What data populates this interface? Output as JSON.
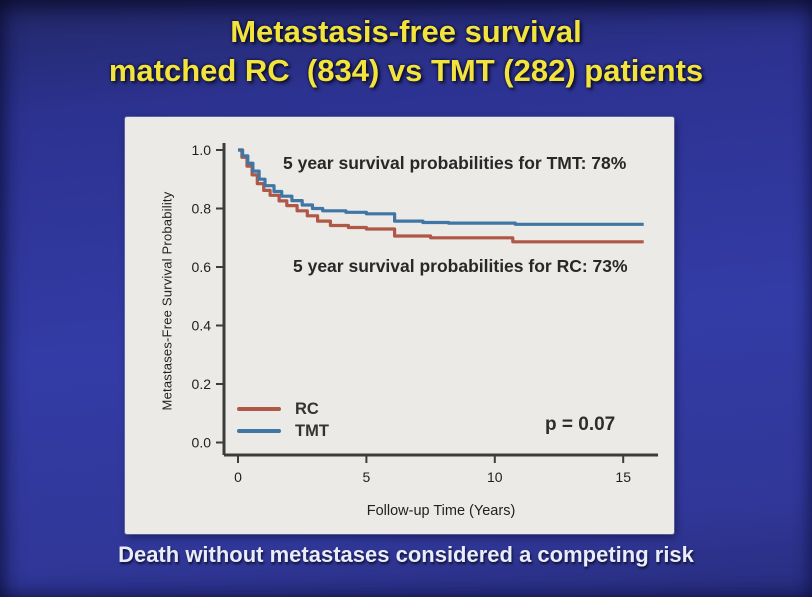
{
  "title": {
    "line1": "Metastasis-free survival",
    "line2": "matched RC  (834) vs TMT (282) patients"
  },
  "footnote": "Death without metastases considered a competing risk",
  "colors": {
    "background": "#333ca6",
    "title_yellow": "#f2e33d",
    "panel_background": "#eceae6",
    "axis": "#3c3c3c",
    "rc_red": "#b05847",
    "tmt_blue": "#3f76a6",
    "footnote_text": "#e9ecfb"
  },
  "chart_data": {
    "type": "line",
    "subtype": "kaplan-meier-step",
    "title": "",
    "xlabel": "Follow-up Time (Years)",
    "ylabel": "Metastases-Free Survival Probability",
    "xlim": [
      0,
      16.3
    ],
    "ylim": [
      0.0,
      1.0
    ],
    "x_ticks": [
      0,
      5,
      10,
      15
    ],
    "y_ticks": [
      1.0,
      0.8,
      0.6,
      0.4,
      0.2,
      0.0
    ],
    "grid": false,
    "legend_position": "lower-left",
    "p_value": "p = 0.07",
    "annotations": [
      {
        "id": "tmt-5yr",
        "text": "5 year survival probabilities for TMT: 78%"
      },
      {
        "id": "rc-5yr",
        "text": "5 year survival probabilities for RC: 73%"
      }
    ],
    "series": [
      {
        "name": "RC",
        "color": "#b05847",
        "n_patients": 834,
        "points": [
          [
            0,
            1.0
          ],
          [
            0.15,
            0.975
          ],
          [
            0.35,
            0.945
          ],
          [
            0.55,
            0.915
          ],
          [
            0.75,
            0.885
          ],
          [
            1.0,
            0.862
          ],
          [
            1.25,
            0.845
          ],
          [
            1.6,
            0.826
          ],
          [
            1.9,
            0.81
          ],
          [
            2.3,
            0.792
          ],
          [
            2.7,
            0.775
          ],
          [
            3.1,
            0.757
          ],
          [
            3.6,
            0.742
          ],
          [
            4.3,
            0.735
          ],
          [
            5.0,
            0.73
          ],
          [
            6.1,
            0.706
          ],
          [
            7.5,
            0.7
          ],
          [
            10.7,
            0.686
          ],
          [
            15.8,
            0.686
          ]
        ]
      },
      {
        "name": "TMT",
        "color": "#3f76a6",
        "n_patients": 282,
        "points": [
          [
            0,
            1.0
          ],
          [
            0.18,
            0.98
          ],
          [
            0.38,
            0.955
          ],
          [
            0.58,
            0.928
          ],
          [
            0.82,
            0.9
          ],
          [
            1.05,
            0.878
          ],
          [
            1.4,
            0.858
          ],
          [
            1.7,
            0.842
          ],
          [
            2.1,
            0.827
          ],
          [
            2.5,
            0.812
          ],
          [
            2.9,
            0.8
          ],
          [
            3.3,
            0.792
          ],
          [
            4.2,
            0.787
          ],
          [
            5.0,
            0.782
          ],
          [
            6.1,
            0.757
          ],
          [
            7.2,
            0.752
          ],
          [
            8.2,
            0.75
          ],
          [
            10.8,
            0.746
          ],
          [
            15.8,
            0.746
          ]
        ]
      }
    ]
  }
}
